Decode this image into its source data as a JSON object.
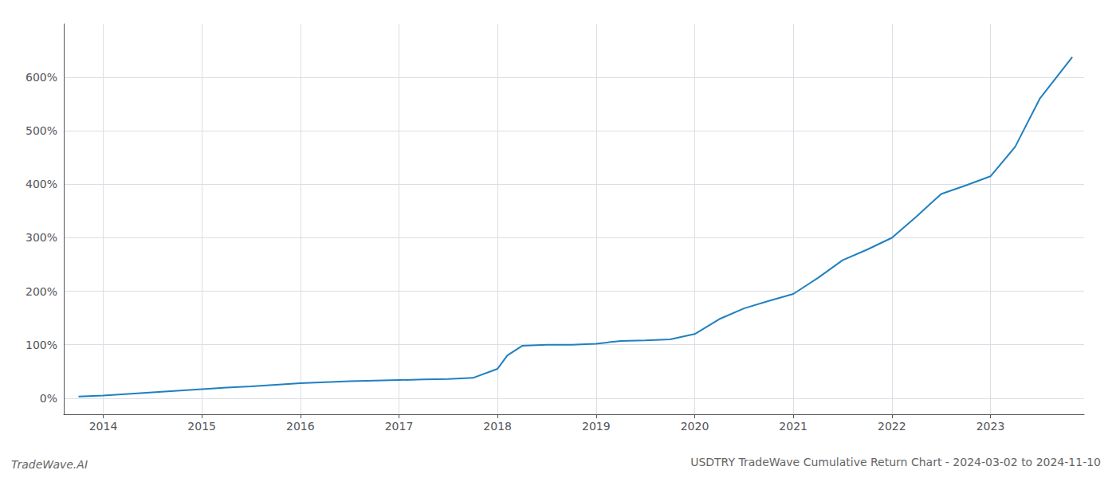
{
  "chart_data": {
    "type": "line",
    "title": "USDTRY TradeWave Cumulative Return Chart - 2024-03-02 to 2024-11-10",
    "annotations": [
      "TradeWave.AI"
    ],
    "color": "#2080c0",
    "grid": true,
    "x": [
      2013.75,
      2014.0,
      2014.25,
      2014.5,
      2014.75,
      2015.0,
      2015.25,
      2015.5,
      2015.75,
      2016.0,
      2016.25,
      2016.5,
      2016.75,
      2017.0,
      2017.25,
      2017.5,
      2017.75,
      2018.0,
      2018.1,
      2018.25,
      2018.5,
      2018.75,
      2019.0,
      2019.25,
      2019.5,
      2019.75,
      2020.0,
      2020.25,
      2020.5,
      2020.75,
      2021.0,
      2021.25,
      2021.5,
      2021.75,
      2022.0,
      2022.25,
      2022.5,
      2022.75,
      2023.0,
      2023.25,
      2023.5,
      2023.83
    ],
    "values": [
      3,
      5,
      8,
      11,
      14,
      17,
      20,
      22,
      25,
      28,
      30,
      32,
      33,
      34,
      35,
      36,
      38,
      55,
      80,
      98,
      100,
      100,
      102,
      107,
      108,
      110,
      120,
      148,
      168,
      182,
      195,
      225,
      258,
      278,
      300,
      340,
      382,
      398,
      415,
      470,
      560,
      638
    ],
    "xlim": [
      2013.6,
      2023.95
    ],
    "xticks": [
      2014,
      2015,
      2016,
      2017,
      2018,
      2019,
      2020,
      2021,
      2022,
      2023
    ],
    "ylim": [
      -30,
      700
    ],
    "yticks": [
      {
        "value": 0,
        "label": "0%"
      },
      {
        "value": 100,
        "label": "100%"
      },
      {
        "value": 200,
        "label": "200%"
      },
      {
        "value": 300,
        "label": "300%"
      },
      {
        "value": 400,
        "label": "400%"
      },
      {
        "value": 500,
        "label": "500%"
      },
      {
        "value": 600,
        "label": "600%"
      }
    ]
  }
}
